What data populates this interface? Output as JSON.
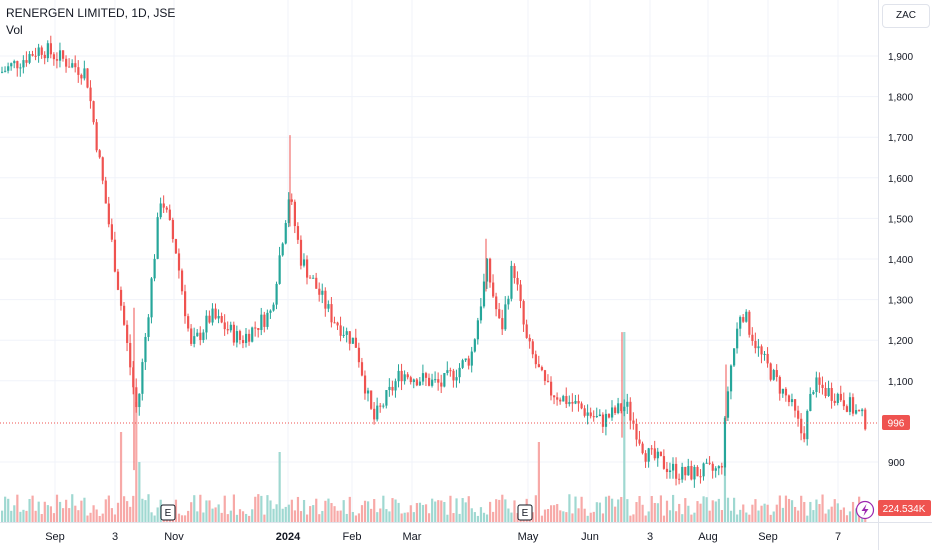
{
  "header": {
    "title": "RENERGEN LIMITED, 1D, JSE",
    "volume_label": "Vol",
    "currency": "ZAC"
  },
  "price_axis": {
    "ticks": [
      1900,
      1800,
      1700,
      1600,
      1500,
      1400,
      1300,
      1200,
      1100,
      900
    ],
    "tick_labels": [
      "1,900",
      "1,800",
      "1,700",
      "1,600",
      "1,500",
      "1,400",
      "1,300",
      "1,200",
      "1,100",
      "900"
    ]
  },
  "time_axis": {
    "labels": [
      "Sep",
      "3",
      "Nov",
      "2024",
      "Feb",
      "Mar",
      "May",
      "Jun",
      "3",
      "Aug",
      "Sep",
      "7"
    ]
  },
  "badges": {
    "last_price": "996",
    "volume": "224.534K",
    "earnings_marker": "E"
  },
  "colors": {
    "up": "#26a69a",
    "down": "#ef5350",
    "up_volume": "#9fd8d1",
    "down_volume": "#f7a9a7",
    "grid": "#f0f3fa",
    "price_line": "#ef5350"
  },
  "chart_data": {
    "type": "candlestick",
    "y_range": [
      820,
      1970
    ],
    "last_price": 996,
    "current_volume": "224.534K",
    "earnings_events": [
      "E",
      "E"
    ],
    "price_path": [
      {
        "x": "Aug 2023",
        "close": 1860
      },
      {
        "x": "Sep 2023",
        "close": 1920
      },
      {
        "x": "Sep 2023",
        "close": 1860
      },
      {
        "x": "3 Oct 2023",
        "close": 1320
      },
      {
        "x": "Oct 2023",
        "close": 1020
      },
      {
        "x": "Oct 2023",
        "close": 1560
      },
      {
        "x": "Nov 2023",
        "close": 1420
      },
      {
        "x": "Nov 2023",
        "close": 1180
      },
      {
        "x": "Nov 2023",
        "close": 1260
      },
      {
        "x": "Dec 2023",
        "close": 1200
      },
      {
        "x": "Dec 2023",
        "close": 1270
      },
      {
        "x": "2024",
        "close": 1560
      },
      {
        "x": "Jan 2024",
        "close": 1400
      },
      {
        "x": "Jan 2024",
        "close": 1260
      },
      {
        "x": "Feb 2024",
        "close": 1190
      },
      {
        "x": "Feb 2024",
        "close": 1000
      },
      {
        "x": "Mar 2024",
        "close": 1120
      },
      {
        "x": "Mar 2024",
        "close": 1090
      },
      {
        "x": "Apr 2024",
        "close": 1160
      },
      {
        "x": "Apr 2024",
        "close": 1380
      },
      {
        "x": "Apr 2024",
        "close": 1220
      },
      {
        "x": "May 2024",
        "close": 1390
      },
      {
        "x": "May 2024",
        "close": 1200
      },
      {
        "x": "May 2024",
        "close": 1080
      },
      {
        "x": "Jun 2024",
        "close": 1040
      },
      {
        "x": "Jun 2024",
        "close": 1000
      },
      {
        "x": "3 Jul 2024",
        "close": 1040
      },
      {
        "x": "Jul 2024",
        "close": 920
      },
      {
        "x": "Jul 2024",
        "close": 870
      },
      {
        "x": "Aug 2024",
        "close": 880
      },
      {
        "x": "Aug 2024",
        "close": 1110
      },
      {
        "x": "Aug 2024",
        "close": 1280
      },
      {
        "x": "Sep 2024",
        "close": 1160
      },
      {
        "x": "Sep 2024",
        "close": 1040
      },
      {
        "x": "Sep 2024",
        "close": 960
      },
      {
        "x": "Sep 2024",
        "close": 1090
      },
      {
        "x": "7 Oct 2024",
        "close": 1060
      },
      {
        "x": "Oct 2024",
        "close": 996
      }
    ]
  }
}
